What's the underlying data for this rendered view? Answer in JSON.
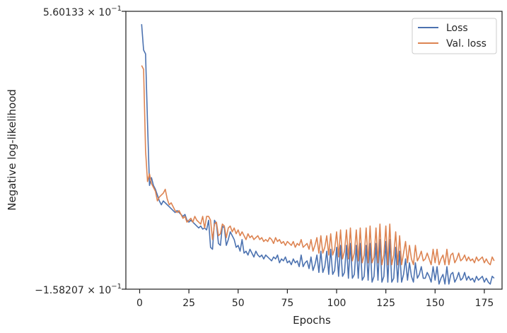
{
  "chart_data": {
    "type": "line",
    "title": "",
    "xlabel": "Epochs",
    "ylabel": "Negative log-likelihood",
    "xlim": [
      -7,
      184
    ],
    "ylim": [
      -0.158207,
      0.560133
    ],
    "x_ticks": [
      0,
      25,
      50,
      75,
      100,
      125,
      150,
      175
    ],
    "x_tick_labels": [
      "0",
      "25",
      "50",
      "75",
      "100",
      "125",
      "150",
      "175"
    ],
    "y_tick_labels": {
      "top": {
        "mantissa": "5.60133",
        "base": "10",
        "exp": "−1"
      },
      "bottom": {
        "mantissa": "−1.58207",
        "base": "10",
        "exp": "−1"
      }
    },
    "grid": false,
    "legend": "top-right",
    "x_start": 1,
    "series": [
      {
        "name": "Loss",
        "color": "#4c72b0",
        "values": [
          0.527,
          0.46,
          0.45,
          0.27,
          0.11,
          0.13,
          0.11,
          0.1,
          0.085,
          0.07,
          0.06,
          0.07,
          0.065,
          0.06,
          0.055,
          0.05,
          0.045,
          0.04,
          0.045,
          0.04,
          0.035,
          0.03,
          0.035,
          0.02,
          0.015,
          0.02,
          0.015,
          0.01,
          0.005,
          0.0,
          0.005,
          -0.003,
          0.0,
          -0.005,
          0.02,
          -0.05,
          -0.055,
          0.02,
          0.01,
          -0.04,
          -0.045,
          0.005,
          0.0,
          -0.045,
          -0.03,
          -0.01,
          -0.02,
          -0.03,
          -0.05,
          -0.045,
          -0.06,
          -0.03,
          -0.065,
          -0.06,
          -0.07,
          -0.055,
          -0.065,
          -0.075,
          -0.06,
          -0.07,
          -0.075,
          -0.07,
          -0.08,
          -0.07,
          -0.075,
          -0.08,
          -0.085,
          -0.075,
          -0.08,
          -0.07,
          -0.09,
          -0.08,
          -0.085,
          -0.075,
          -0.09,
          -0.085,
          -0.095,
          -0.08,
          -0.09,
          -0.085,
          -0.1,
          -0.07,
          -0.1,
          -0.09,
          -0.085,
          -0.105,
          -0.075,
          -0.11,
          -0.095,
          -0.07,
          -0.115,
          -0.06,
          -0.115,
          -0.1,
          -0.06,
          -0.12,
          -0.055,
          -0.12,
          -0.11,
          -0.05,
          -0.125,
          -0.045,
          -0.125,
          -0.115,
          -0.045,
          -0.13,
          -0.04,
          -0.13,
          -0.12,
          -0.045,
          -0.13,
          -0.04,
          -0.135,
          -0.125,
          -0.045,
          -0.135,
          -0.04,
          -0.14,
          -0.125,
          -0.04,
          -0.135,
          -0.03,
          -0.14,
          -0.125,
          -0.035,
          -0.14,
          -0.03,
          -0.14,
          -0.13,
          -0.05,
          -0.14,
          -0.06,
          -0.14,
          -0.12,
          -0.08,
          -0.135,
          -0.09,
          -0.125,
          -0.14,
          -0.09,
          -0.13,
          -0.12,
          -0.1,
          -0.13,
          -0.13,
          -0.115,
          -0.125,
          -0.14,
          -0.1,
          -0.135,
          -0.1,
          -0.145,
          -0.13,
          -0.12,
          -0.145,
          -0.1,
          -0.145,
          -0.12,
          -0.115,
          -0.14,
          -0.13,
          -0.115,
          -0.135,
          -0.13,
          -0.115,
          -0.135,
          -0.125,
          -0.135,
          -0.13,
          -0.14,
          -0.125,
          -0.135,
          -0.13,
          -0.125,
          -0.14,
          -0.13,
          -0.14,
          -0.145,
          -0.125,
          -0.13
        ]
      },
      {
        "name": "Val. loss",
        "color": "#dd8452",
        "values": [
          0.42,
          0.41,
          0.2,
          0.12,
          0.14,
          0.115,
          0.105,
          0.095,
          0.07,
          0.08,
          0.085,
          0.09,
          0.1,
          0.075,
          0.06,
          0.065,
          0.055,
          0.045,
          0.04,
          0.045,
          0.035,
          0.025,
          0.03,
          0.015,
          0.02,
          0.025,
          0.015,
          0.03,
          0.02,
          0.015,
          0.01,
          0.03,
          0.0,
          0.03,
          0.03,
          0.02,
          -0.03,
          0.01,
          0.015,
          -0.02,
          -0.015,
          0.01,
          0.005,
          -0.025,
          0.0,
          0.005,
          -0.01,
          0.0,
          -0.015,
          -0.005,
          -0.02,
          -0.01,
          -0.02,
          -0.03,
          -0.015,
          -0.025,
          -0.02,
          -0.03,
          -0.025,
          -0.02,
          -0.03,
          -0.025,
          -0.035,
          -0.03,
          -0.035,
          -0.025,
          -0.03,
          -0.04,
          -0.025,
          -0.035,
          -0.03,
          -0.04,
          -0.035,
          -0.045,
          -0.035,
          -0.04,
          -0.045,
          -0.035,
          -0.05,
          -0.04,
          -0.045,
          -0.03,
          -0.05,
          -0.045,
          -0.04,
          -0.055,
          -0.03,
          -0.06,
          -0.045,
          -0.025,
          -0.065,
          -0.02,
          -0.065,
          -0.05,
          -0.02,
          -0.07,
          -0.015,
          -0.07,
          -0.055,
          -0.01,
          -0.075,
          -0.005,
          -0.08,
          -0.06,
          -0.005,
          -0.08,
          0.0,
          -0.085,
          -0.065,
          -0.005,
          -0.085,
          0.0,
          -0.09,
          -0.07,
          0.0,
          -0.09,
          0.005,
          -0.09,
          -0.075,
          0.0,
          -0.09,
          0.01,
          -0.095,
          -0.07,
          0.005,
          -0.095,
          0.01,
          -0.095,
          -0.07,
          -0.01,
          -0.095,
          -0.02,
          -0.095,
          -0.065,
          -0.035,
          -0.09,
          -0.045,
          -0.08,
          -0.095,
          -0.045,
          -0.085,
          -0.075,
          -0.06,
          -0.085,
          -0.08,
          -0.065,
          -0.08,
          -0.095,
          -0.055,
          -0.09,
          -0.055,
          -0.095,
          -0.08,
          -0.07,
          -0.095,
          -0.055,
          -0.095,
          -0.07,
          -0.065,
          -0.09,
          -0.08,
          -0.065,
          -0.085,
          -0.08,
          -0.07,
          -0.085,
          -0.075,
          -0.085,
          -0.08,
          -0.09,
          -0.075,
          -0.085,
          -0.08,
          -0.075,
          -0.09,
          -0.08,
          -0.09,
          -0.095,
          -0.075,
          -0.085
        ]
      }
    ]
  }
}
